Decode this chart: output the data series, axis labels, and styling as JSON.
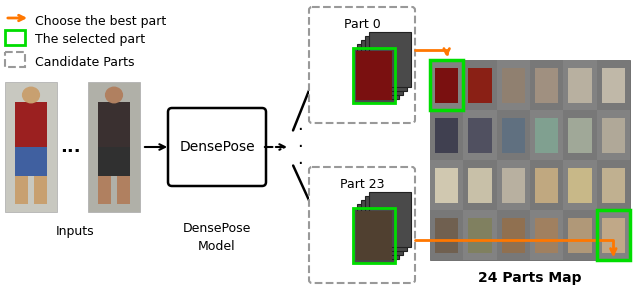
{
  "bg_color": "#ffffff",
  "orange_color": "#FF7700",
  "green_color": "#00DD00",
  "black_color": "#000000",
  "gray_color": "#999999",
  "legend_arrow_label": "Choose the best part",
  "legend_rect_label": "The selected part",
  "legend_dash_label": "Candidate Parts",
  "inputs_label": "Inputs",
  "densepose_label": "DensePose",
  "densepose_model_label": "DensePose\nModel",
  "part0_label": "Part 0",
  "part23_label": "Part 23",
  "parts_map_label": "24 Parts Map",
  "grid_rows": 4,
  "grid_cols": 6,
  "grid_bg": "#787878",
  "stack_dark": "#4a4a4a",
  "stack_border": "#2a2a2a"
}
